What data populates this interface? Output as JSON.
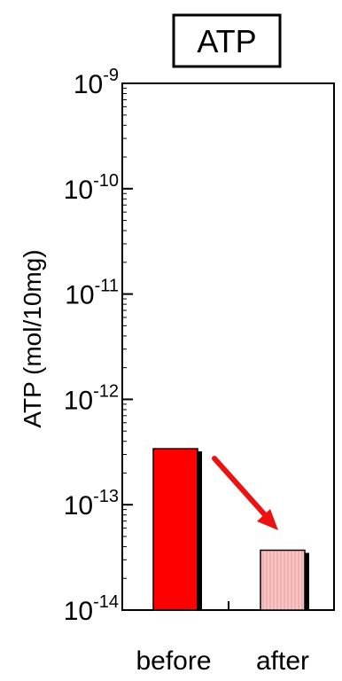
{
  "chart_data": {
    "type": "bar",
    "title": "ATP",
    "ylabel": "ATP (mol/10mg)",
    "xlabel": "",
    "yscale": "log",
    "ylim": [
      1e-14,
      1e-09
    ],
    "categories": [
      "before",
      "after"
    ],
    "values": [
      3.4e-13,
      3.7e-14
    ],
    "y_tick_labels": [
      {
        "base": "10",
        "exp": "-9",
        "value": 1e-09
      },
      {
        "base": "10",
        "exp": "-10",
        "value": 1e-10
      },
      {
        "base": "10",
        "exp": "-11",
        "value": 1e-11
      },
      {
        "base": "10",
        "exp": "-12",
        "value": 1e-12
      },
      {
        "base": "10",
        "exp": "-13",
        "value": 1e-13
      },
      {
        "base": "10",
        "exp": "-14",
        "value": 1e-14
      }
    ],
    "bar_colors": [
      "#ff0000",
      "#f7c6c6"
    ],
    "bar_hatch_color": "#e89a9a",
    "shadow_color": "#000000",
    "arrow_color": "#ee1111",
    "annotation": "red arrow pointing from the before bar down to the after bar",
    "grid": false,
    "legend": "none"
  }
}
